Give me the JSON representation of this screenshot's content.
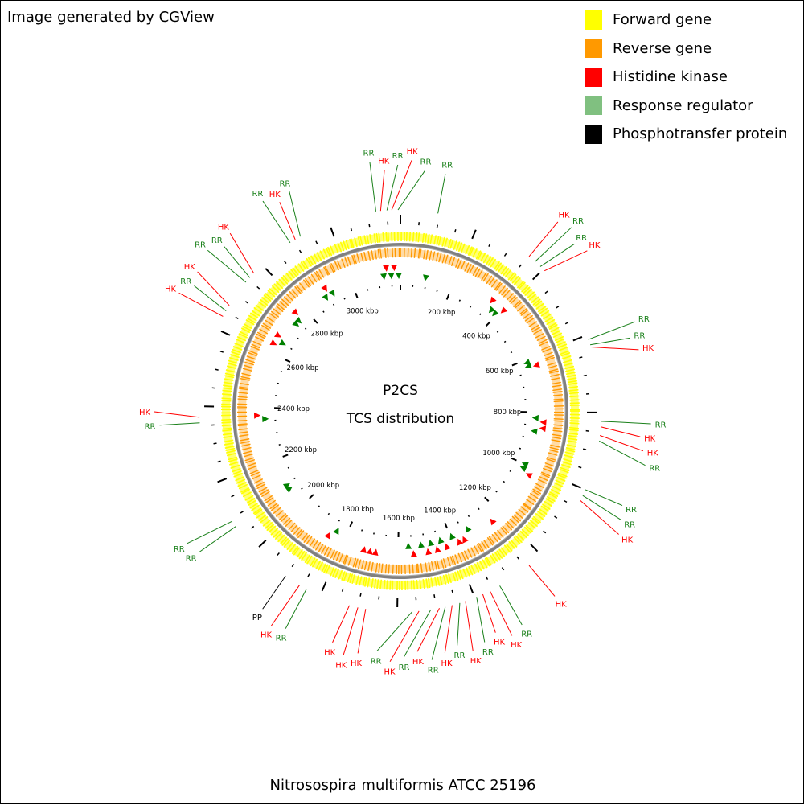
{
  "credit": "Image generated by CGView",
  "footer_title": "Nitrosospira multiformis ATCC 25196",
  "center_title": "P2CS",
  "center_subtitle": "TCS distribution",
  "legend": [
    {
      "label": "Forward gene",
      "color": "#ffff00"
    },
    {
      "label": "Reverse gene",
      "color": "#ff9900"
    },
    {
      "label": "Histidine kinase",
      "color": "#ff0000"
    },
    {
      "label": "Response regulator",
      "color": "#80c080"
    },
    {
      "label": "Phosphotransfer protein",
      "color": "#000000"
    }
  ],
  "colors": {
    "forward": "#ffff00",
    "reverse": "#ff9900",
    "hk": "#ff0000",
    "rr_marker": "#008000",
    "rr_label": "#1a801a",
    "pp": "#000000",
    "backbone": "#808080"
  },
  "genome_length_kbp": 3184,
  "tick_labels": [
    "200 kbp",
    "400 kbp",
    "600 kbp",
    "800 kbp",
    "1000 kbp",
    "1200 kbp",
    "1400 kbp",
    "1600 kbp",
    "1800 kbp",
    "2000 kbp",
    "2200 kbp",
    "2400 kbp",
    "2600 kbp",
    "2800 kbp",
    "3000 kbp"
  ],
  "features": [
    {
      "type": "RR",
      "kbp": 95
    },
    {
      "type": "HK",
      "kbp": 352
    },
    {
      "type": "RR",
      "kbp": 372
    },
    {
      "type": "RR",
      "kbp": 390
    },
    {
      "type": "HK",
      "kbp": 405
    },
    {
      "type": "RR",
      "kbp": 612
    },
    {
      "type": "RR",
      "kbp": 626
    },
    {
      "type": "HK",
      "kbp": 632
    },
    {
      "type": "RR",
      "kbp": 822
    },
    {
      "type": "HK",
      "kbp": 836
    },
    {
      "type": "HK",
      "kbp": 858
    },
    {
      "type": "RR",
      "kbp": 872
    },
    {
      "type": "RR",
      "kbp": 1000
    },
    {
      "type": "RR",
      "kbp": 1016
    },
    {
      "type": "HK",
      "kbp": 1030
    },
    {
      "type": "HK",
      "kbp": 1240
    },
    {
      "type": "RR",
      "kbp": 1330
    },
    {
      "type": "HK",
      "kbp": 1358
    },
    {
      "type": "HK",
      "kbp": 1378
    },
    {
      "type": "RR",
      "kbp": 1395
    },
    {
      "type": "HK",
      "kbp": 1425
    },
    {
      "type": "RR",
      "kbp": 1440
    },
    {
      "type": "HK",
      "kbp": 1460
    },
    {
      "type": "RR",
      "kbp": 1478
    },
    {
      "type": "HK",
      "kbp": 1493
    },
    {
      "type": "RR",
      "kbp": 1515
    },
    {
      "type": "HK",
      "kbp": 1545
    },
    {
      "type": "RR",
      "kbp": 1562
    },
    {
      "type": "HK",
      "kbp": 1680
    },
    {
      "type": "HK",
      "kbp": 1700
    },
    {
      "type": "HK",
      "kbp": 1722
    },
    {
      "type": "RR",
      "kbp": 1838
    },
    {
      "type": "HK",
      "kbp": 1858
    },
    {
      "type": "PP",
      "kbp": 1900
    },
    {
      "type": "RR",
      "kbp": 2078
    },
    {
      "type": "RR",
      "kbp": 2094
    },
    {
      "type": "RR",
      "kbp": 2358
    },
    {
      "type": "HK",
      "kbp": 2372
    },
    {
      "type": "HK",
      "kbp": 2636
    },
    {
      "type": "RR",
      "kbp": 2652
    },
    {
      "type": "HK",
      "kbp": 2668
    },
    {
      "type": "RR",
      "kbp": 2740
    },
    {
      "type": "RR",
      "kbp": 2755
    },
    {
      "type": "HK",
      "kbp": 2770
    },
    {
      "type": "RR",
      "kbp": 2890
    },
    {
      "type": "HK",
      "kbp": 2905
    },
    {
      "type": "RR",
      "kbp": 2920
    },
    {
      "type": "RR",
      "kbp": 3122
    },
    {
      "type": "HK",
      "kbp": 3134
    },
    {
      "type": "RR",
      "kbp": 3150
    },
    {
      "type": "HK",
      "kbp": 3162
    },
    {
      "type": "RR",
      "kbp": 3178
    }
  ]
}
